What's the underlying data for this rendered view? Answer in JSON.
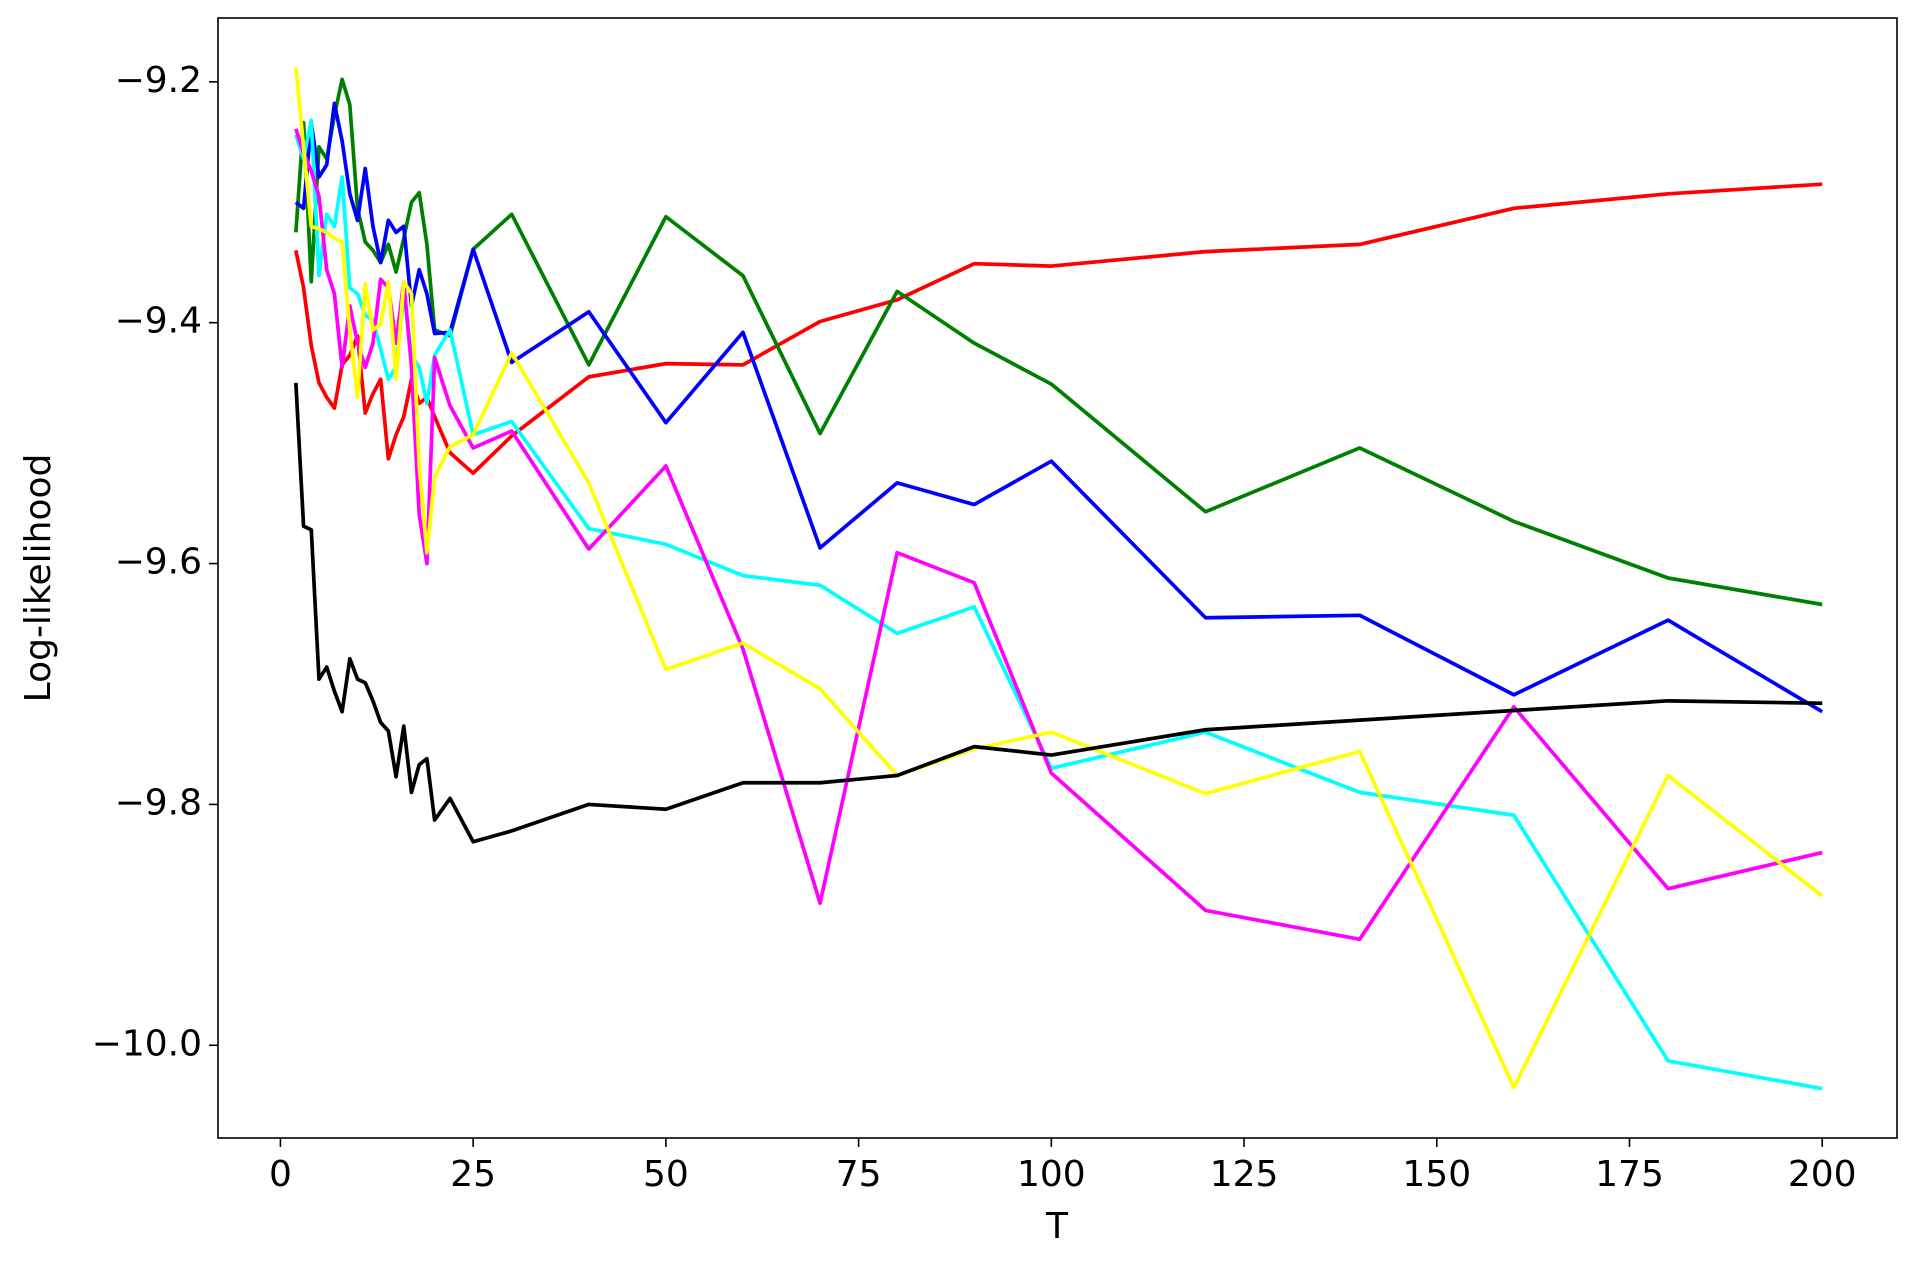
{
  "chart_data": {
    "type": "line",
    "xlabel": "T",
    "ylabel": "Log-likelihood",
    "x": [
      2,
      3,
      4,
      5,
      6,
      7,
      8,
      9,
      10,
      11,
      12,
      13,
      14,
      15,
      16,
      17,
      18,
      19,
      20,
      22,
      25,
      30,
      40,
      50,
      60,
      70,
      80,
      90,
      100,
      120,
      140,
      160,
      180,
      200
    ],
    "xlim": [
      -8.1,
      209.7
    ],
    "xticks": [
      0,
      25,
      50,
      75,
      100,
      125,
      150,
      175,
      200
    ],
    "ylim": [
      -10.077,
      -9.147
    ],
    "yticks": [
      {
        "value": -9.2,
        "label": "−9.2"
      },
      {
        "value": -9.4,
        "label": "−9.4"
      },
      {
        "value": -9.6,
        "label": "−9.6"
      },
      {
        "value": -9.8,
        "label": "−9.8"
      },
      {
        "value": -10.0,
        "label": "−10.0"
      }
    ],
    "grid": false,
    "series": [
      {
        "color": "#ff0000",
        "values": [
          -9.34,
          -9.371,
          -9.419,
          -9.45,
          -9.462,
          -9.471,
          -9.435,
          -9.427,
          -9.411,
          -9.475,
          -9.459,
          -9.447,
          -9.513,
          -9.493,
          -9.478,
          -9.447,
          -9.467,
          -9.462,
          -9.478,
          -9.508,
          -9.525,
          -9.494,
          -9.445,
          -9.434,
          -9.435,
          -9.399,
          -9.381,
          -9.351,
          -9.353,
          -9.341,
          -9.335,
          -9.305,
          -9.293,
          -9.285
        ]
      },
      {
        "color": "#008000",
        "values": [
          -9.325,
          -9.234,
          -9.366,
          -9.254,
          -9.264,
          -9.228,
          -9.198,
          -9.219,
          -9.305,
          -9.333,
          -9.34,
          -9.35,
          -9.335,
          -9.358,
          -9.33,
          -9.3,
          -9.292,
          -9.335,
          -9.406,
          -9.411,
          -9.339,
          -9.31,
          -9.435,
          -9.312,
          -9.361,
          -9.492,
          -9.374,
          -9.417,
          -9.451,
          -9.557,
          -9.504,
          -9.565,
          -9.612,
          -9.634
        ]
      },
      {
        "color": "#0000ff",
        "values": [
          -9.3,
          -9.305,
          -9.234,
          -9.279,
          -9.269,
          -9.218,
          -9.249,
          -9.293,
          -9.315,
          -9.272,
          -9.32,
          -9.35,
          -9.315,
          -9.325,
          -9.32,
          -9.386,
          -9.356,
          -9.376,
          -9.409,
          -9.408,
          -9.339,
          -9.433,
          -9.391,
          -9.483,
          -9.408,
          -9.587,
          -9.533,
          -9.551,
          -9.515,
          -9.645,
          -9.643,
          -9.709,
          -9.647,
          -9.723
        ]
      },
      {
        "color": "#00ffff",
        "values": [
          -9.244,
          -9.264,
          -9.232,
          -9.361,
          -9.31,
          -9.32,
          -9.279,
          -9.371,
          -9.376,
          -9.394,
          -9.398,
          -9.422,
          -9.447,
          -9.437,
          -9.376,
          -9.427,
          -9.437,
          -9.467,
          -9.427,
          -9.406,
          -9.493,
          -9.482,
          -9.571,
          -9.584,
          -9.61,
          -9.618,
          -9.658,
          -9.636,
          -9.77,
          -9.74,
          -9.79,
          -9.809,
          -10.013,
          -10.036
        ]
      },
      {
        "color": "#ff00ff",
        "values": [
          -9.239,
          -9.259,
          -9.274,
          -9.295,
          -9.356,
          -9.376,
          -9.437,
          -9.386,
          -9.417,
          -9.437,
          -9.417,
          -9.364,
          -9.371,
          -9.417,
          -9.366,
          -9.437,
          -9.559,
          -9.6,
          -9.429,
          -9.469,
          -9.504,
          -9.49,
          -9.588,
          -9.519,
          -9.671,
          -9.882,
          -9.591,
          -9.616,
          -9.774,
          -9.888,
          -9.912,
          -9.719,
          -9.87,
          -9.84
        ]
      },
      {
        "color": "#ffff00",
        "values": [
          -9.188,
          -9.254,
          -9.32,
          -9.322,
          -9.325,
          -9.33,
          -9.333,
          -9.406,
          -9.462,
          -9.368,
          -9.406,
          -9.401,
          -9.366,
          -9.447,
          -9.366,
          -9.376,
          -9.518,
          -9.591,
          -9.528,
          -9.503,
          -9.493,
          -9.425,
          -9.533,
          -9.688,
          -9.666,
          -9.704,
          -9.776,
          -9.754,
          -9.74,
          -9.791,
          -9.756,
          -10.035,
          -9.776,
          -9.876
        ]
      },
      {
        "color": "#000000",
        "values": [
          -9.45,
          -9.569,
          -9.572,
          -9.696,
          -9.686,
          -9.706,
          -9.723,
          -9.679,
          -9.696,
          -9.699,
          -9.714,
          -9.732,
          -9.739,
          -9.777,
          -9.735,
          -9.79,
          -9.767,
          -9.762,
          -9.813,
          -9.795,
          -9.831,
          -9.822,
          -9.8,
          -9.804,
          -9.782,
          -9.782,
          -9.776,
          -9.752,
          -9.759,
          -9.738,
          -9.73,
          -9.722,
          -9.714,
          -9.716
        ]
      }
    ]
  }
}
